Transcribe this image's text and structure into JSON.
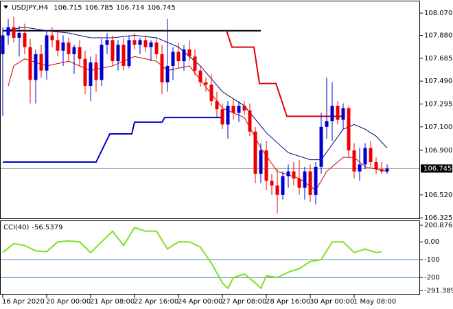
{
  "chart_data": {
    "type": "candlestick",
    "symbol": "USDJPY,H4",
    "header_ohlc": [
      106.715,
      106.785,
      106.714,
      106.745
    ],
    "up_color": "#0000cc",
    "down_color": "#ee0000",
    "ylim": [
      106.32,
      108.17
    ],
    "yticks": [
      {
        "value": 108.07,
        "label": "108.070"
      },
      {
        "value": 107.88,
        "label": "107.880"
      },
      107.685,
      {
        "value": 107.49,
        "label": "107.490"
      },
      107.295,
      {
        "value": 107.1,
        "label": "107.100"
      },
      {
        "value": 106.9,
        "label": "106.900"
      },
      {
        "value": 106.52,
        "label": "106.520"
      },
      106.325
    ],
    "xticks": [
      {
        "value": 0,
        "label": "16 Apr 2020"
      },
      {
        "value": 8,
        "label": "20 Apr 00:00"
      },
      {
        "value": 16,
        "label": "21 Apr 08:00"
      },
      {
        "value": 24,
        "label": "22 Apr 16:00"
      },
      {
        "value": 32,
        "label": "24 Apr 00:00"
      },
      {
        "value": 40,
        "label": "27 Apr 08:00"
      },
      {
        "value": 48,
        "label": "28 Apr 16:00"
      },
      {
        "value": 56,
        "label": "30 Apr 00:00"
      },
      {
        "value": 64,
        "label": "1 May 08:00"
      }
    ],
    "ohlc": [
      [
        107.72,
        107.95,
        107.19,
        107.88
      ],
      [
        107.88,
        108.02,
        107.8,
        107.95
      ],
      [
        107.95,
        108.04,
        107.82,
        107.86
      ],
      [
        107.86,
        107.96,
        107.7,
        107.9
      ],
      [
        107.9,
        107.98,
        107.72,
        107.78
      ],
      [
        107.78,
        107.85,
        107.3,
        107.5
      ],
      [
        107.5,
        107.76,
        107.3,
        107.72
      ],
      [
        107.72,
        107.8,
        107.52,
        107.58
      ],
      [
        107.58,
        107.92,
        107.5,
        107.88
      ],
      [
        107.88,
        107.95,
        107.78,
        107.84
      ],
      [
        107.84,
        107.92,
        107.7,
        107.75
      ],
      [
        107.75,
        107.88,
        107.62,
        107.82
      ],
      [
        107.82,
        107.86,
        107.66,
        107.72
      ],
      [
        107.72,
        107.8,
        107.55,
        107.78
      ],
      [
        107.78,
        107.84,
        107.62,
        107.68
      ],
      [
        107.68,
        107.75,
        107.38,
        107.45
      ],
      [
        107.45,
        107.7,
        107.32,
        107.65
      ],
      [
        107.65,
        107.72,
        107.4,
        107.5
      ],
      [
        107.5,
        107.85,
        107.45,
        107.8
      ],
      [
        107.8,
        107.9,
        107.72,
        107.84
      ],
      [
        107.84,
        107.88,
        107.62,
        107.66
      ],
      [
        107.66,
        107.84,
        107.58,
        107.8
      ],
      [
        107.8,
        107.86,
        107.58,
        107.62
      ],
      [
        107.62,
        107.88,
        107.6,
        107.84
      ],
      [
        107.84,
        107.9,
        107.76,
        107.8
      ],
      [
        107.8,
        107.86,
        107.72,
        107.84
      ],
      [
        107.84,
        107.88,
        107.74,
        107.78
      ],
      [
        107.78,
        107.84,
        107.66,
        107.82
      ],
      [
        107.82,
        107.86,
        107.68,
        107.72
      ],
      [
        107.72,
        107.8,
        107.38,
        107.48
      ],
      [
        107.48,
        108.02,
        107.4,
        107.62
      ],
      [
        107.62,
        107.78,
        107.5,
        107.74
      ],
      [
        107.74,
        107.82,
        107.6,
        107.66
      ],
      [
        107.66,
        107.8,
        107.58,
        107.76
      ],
      [
        107.76,
        107.84,
        107.66,
        107.7
      ],
      [
        107.7,
        107.76,
        107.54,
        107.58
      ],
      [
        107.58,
        107.62,
        107.44,
        107.48
      ],
      [
        107.48,
        107.52,
        107.4,
        107.46
      ],
      [
        107.46,
        107.55,
        107.28,
        107.32
      ],
      [
        107.32,
        107.4,
        107.18,
        107.25
      ],
      [
        107.25,
        107.3,
        107.08,
        107.12
      ],
      [
        107.12,
        107.32,
        107.0,
        107.28
      ],
      [
        107.28,
        107.34,
        107.16,
        107.22
      ],
      [
        107.22,
        107.32,
        107.14,
        107.28
      ],
      [
        107.28,
        107.32,
        107.2,
        107.24
      ],
      [
        107.24,
        107.3,
        107.02,
        107.06
      ],
      [
        107.06,
        107.1,
        106.62,
        106.7
      ],
      [
        106.7,
        106.96,
        106.62,
        106.9
      ],
      [
        106.9,
        106.98,
        106.56,
        106.64
      ],
      [
        106.64,
        106.7,
        106.52,
        106.6
      ],
      [
        106.6,
        106.74,
        106.36,
        106.52
      ],
      [
        106.52,
        106.72,
        106.48,
        106.68
      ],
      [
        106.68,
        106.78,
        106.58,
        106.72
      ],
      [
        106.72,
        106.8,
        106.6,
        106.66
      ],
      [
        106.66,
        106.82,
        106.52,
        106.58
      ],
      [
        106.58,
        106.76,
        106.48,
        106.72
      ],
      [
        106.72,
        106.78,
        106.46,
        106.52
      ],
      [
        106.52,
        106.8,
        106.44,
        106.76
      ],
      [
        106.76,
        107.22,
        106.7,
        107.1
      ],
      [
        107.1,
        107.52,
        107.0,
        107.15
      ],
      [
        107.15,
        107.48,
        106.98,
        107.28
      ],
      [
        107.28,
        107.32,
        107.12,
        107.16
      ],
      [
        107.16,
        107.3,
        107.08,
        107.26
      ],
      [
        107.26,
        107.28,
        106.84,
        106.9
      ],
      [
        106.9,
        106.96,
        106.66,
        106.72
      ],
      [
        106.72,
        106.92,
        106.64,
        106.78
      ],
      [
        106.78,
        106.96,
        106.74,
        106.92
      ],
      [
        106.92,
        106.98,
        106.76,
        106.8
      ],
      [
        106.8,
        106.84,
        106.7,
        106.74
      ],
      [
        106.74,
        106.8,
        106.7,
        106.72
      ],
      [
        106.72,
        106.78,
        106.7,
        106.745
      ]
    ],
    "lines": [
      {
        "color": "#000000",
        "width": 2,
        "points": [
          [
            0,
            107.92
          ],
          [
            47,
            107.92
          ]
        ]
      },
      {
        "color": "#e00000",
        "width": 2,
        "points": [
          [
            40.75,
            107.92
          ],
          [
            41.75,
            107.78
          ],
          [
            45.75,
            107.78
          ],
          [
            46.75,
            107.47
          ],
          [
            49.75,
            107.47
          ],
          [
            51.75,
            107.19
          ],
          [
            61.75,
            107.19
          ]
        ]
      },
      {
        "color": "#0000cc",
        "width": 2,
        "points": [
          [
            0,
            106.8
          ],
          [
            17,
            106.8
          ],
          [
            19.5,
            107.04
          ],
          [
            23.5,
            107.04
          ],
          [
            24,
            107.14
          ],
          [
            29,
            107.14
          ],
          [
            29.5,
            107.18
          ],
          [
            40,
            107.18
          ]
        ]
      },
      {
        "color": "#000080",
        "width": 1,
        "points": [
          [
            0,
            107.92
          ],
          [
            4,
            107.95
          ],
          [
            8,
            107.92
          ],
          [
            12,
            107.9
          ],
          [
            16,
            107.86
          ],
          [
            20,
            107.86
          ],
          [
            24,
            107.88
          ],
          [
            28,
            107.86
          ],
          [
            32,
            107.78
          ],
          [
            36,
            107.62
          ],
          [
            40,
            107.4
          ],
          [
            44,
            107.28
          ],
          [
            48,
            107.05
          ],
          [
            52,
            106.88
          ],
          [
            56,
            106.82
          ],
          [
            58,
            106.82
          ],
          [
            60,
            106.95
          ],
          [
            62,
            107.08
          ],
          [
            64,
            107.12
          ],
          [
            66,
            107.08
          ],
          [
            68,
            107.02
          ],
          [
            70,
            106.92
          ]
        ]
      },
      {
        "color": "#cc0000",
        "width": 1,
        "points": [
          [
            1,
            107.45
          ],
          [
            2,
            107.62
          ],
          [
            4,
            107.68
          ],
          [
            8,
            107.62
          ],
          [
            12,
            107.66
          ],
          [
            16,
            107.58
          ],
          [
            20,
            107.62
          ],
          [
            24,
            107.7
          ],
          [
            28,
            107.66
          ],
          [
            30,
            107.58
          ],
          [
            34,
            107.62
          ],
          [
            37,
            107.44
          ],
          [
            40,
            107.26
          ],
          [
            44,
            107.18
          ],
          [
            47,
            106.92
          ],
          [
            50,
            106.72
          ],
          [
            54,
            106.66
          ],
          [
            57,
            106.56
          ],
          [
            59,
            106.72
          ],
          [
            62,
            106.84
          ],
          [
            64,
            106.84
          ],
          [
            66,
            106.76
          ],
          [
            70,
            106.72
          ]
        ]
      }
    ],
    "indicator": {
      "name": "CCI(40)",
      "current": -56.5379,
      "color": "#7ee021",
      "level_color": "#4682b4",
      "ylim": [
        -291.3894,
        200.8761
      ],
      "yticks": [
        {
          "value": 200.8761,
          "label": "200.8761"
        },
        {
          "value": 0,
          "label": "0.00"
        },
        -100,
        -200,
        {
          "value": -291.3894,
          "label": "-291.3894"
        }
      ],
      "levels": [
        -100,
        -200
      ],
      "points": [
        [
          0,
          -60
        ],
        [
          2,
          -10
        ],
        [
          4,
          -20
        ],
        [
          6,
          -50
        ],
        [
          8,
          -55
        ],
        [
          10,
          0
        ],
        [
          12,
          5
        ],
        [
          14,
          0
        ],
        [
          16,
          -60
        ],
        [
          18,
          0
        ],
        [
          20,
          60
        ],
        [
          22,
          -20
        ],
        [
          24,
          80
        ],
        [
          26,
          60
        ],
        [
          28,
          60
        ],
        [
          30,
          -40
        ],
        [
          32,
          0
        ],
        [
          34,
          0
        ],
        [
          36,
          -30
        ],
        [
          38,
          -120
        ],
        [
          40,
          -230
        ],
        [
          41,
          -260
        ],
        [
          42,
          -200
        ],
        [
          44,
          -180
        ],
        [
          46,
          -230
        ],
        [
          47,
          -260
        ],
        [
          48,
          -190
        ],
        [
          50,
          -200
        ],
        [
          52,
          -170
        ],
        [
          54,
          -150
        ],
        [
          56,
          -110
        ],
        [
          58,
          -100
        ],
        [
          60,
          0
        ],
        [
          62,
          0
        ],
        [
          64,
          -60
        ],
        [
          66,
          -40
        ],
        [
          68,
          -60
        ],
        [
          69,
          -55
        ]
      ]
    }
  }
}
